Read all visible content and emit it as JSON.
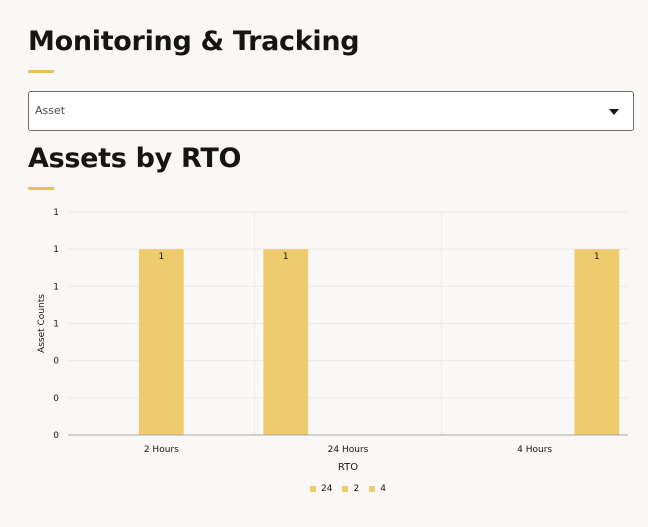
{
  "header": {
    "title": "Monitoring & Tracking"
  },
  "filter": {
    "label": "Asset"
  },
  "section": {
    "title": "Assets by RTO"
  },
  "colors": {
    "accent": "#e8bf5a",
    "bar": "#eecb6c"
  },
  "chart_data": {
    "type": "bar",
    "xlabel": "RTO",
    "ylabel": "Asset Counts",
    "categories": [
      "2 Hours",
      "24 Hours",
      "4 Hours"
    ],
    "y_tick_labels": [
      "0",
      "0",
      "0",
      "1",
      "1",
      "1",
      "1"
    ],
    "ylim": [
      0,
      1.2
    ],
    "grid": true,
    "legend_position": "bottom",
    "series": [
      {
        "name": "24",
        "values": [
          null,
          1,
          null
        ]
      },
      {
        "name": "2",
        "values": [
          1,
          null,
          null
        ]
      },
      {
        "name": "4",
        "values": [
          null,
          null,
          1
        ]
      }
    ],
    "data_labels": [
      "1",
      "1",
      "1"
    ]
  }
}
